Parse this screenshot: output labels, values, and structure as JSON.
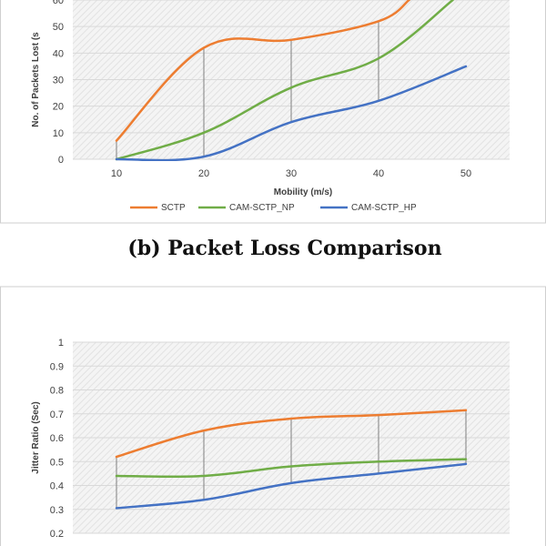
{
  "colors": {
    "SCTP": "#ed7d31",
    "CAM-SCTP_NP": "#70ad47",
    "CAM-SCTP_HP": "#4472c4",
    "grid": "#d9d9d9",
    "dropline": "#7f7f7f"
  },
  "caption": "(b) Packet Loss Comparison",
  "chart_data": [
    {
      "type": "line",
      "title": "",
      "xlabel": "Mobility (m/s)",
      "ylabel": "No. of Packets Lost (s",
      "x": [
        10,
        20,
        30,
        40,
        50
      ],
      "x_ticks": [
        "10",
        "20",
        "30",
        "40",
        "50"
      ],
      "xlim": [
        5,
        55
      ],
      "ylim": [
        0,
        60
      ],
      "y_ticks": [
        "0",
        "10",
        "20",
        "30",
        "40",
        "50",
        "60"
      ],
      "smooth": true,
      "drop_lines": true,
      "grid": true,
      "legend": "bottom",
      "series": [
        {
          "name": "SCTP",
          "x": [
            10,
            20,
            30,
            40,
            43.5
          ],
          "values": [
            7,
            42,
            45,
            52,
            60
          ]
        },
        {
          "name": "CAM-SCTP_NP",
          "x": [
            10,
            20,
            30,
            40,
            48.5
          ],
          "values": [
            0,
            10,
            27,
            38,
            60
          ]
        },
        {
          "name": "CAM-SCTP_HP",
          "x": [
            10,
            20,
            30,
            40,
            50
          ],
          "values": [
            0,
            1,
            14,
            22,
            35
          ]
        }
      ]
    },
    {
      "type": "line",
      "title": "",
      "xlabel": "",
      "ylabel": "Jitter Ratio (Sec)",
      "x": [
        10,
        20,
        30,
        40,
        50
      ],
      "xlim": [
        5,
        55
      ],
      "ylim": [
        0.2,
        1
      ],
      "y_ticks": [
        "0.2",
        "0.3",
        "0.4",
        "0.5",
        "0.6",
        "0.7",
        "0.8",
        "0.9",
        "1"
      ],
      "smooth": true,
      "drop_lines": true,
      "grid": true,
      "series": [
        {
          "name": "SCTP",
          "values": [
            0.52,
            0.63,
            0.68,
            0.695,
            0.715
          ]
        },
        {
          "name": "CAM-SCTP_NP",
          "values": [
            0.44,
            0.44,
            0.48,
            0.5,
            0.51
          ]
        },
        {
          "name": "CAM-SCTP_HP",
          "values": [
            0.305,
            0.34,
            0.41,
            0.45,
            0.49
          ]
        }
      ]
    }
  ]
}
